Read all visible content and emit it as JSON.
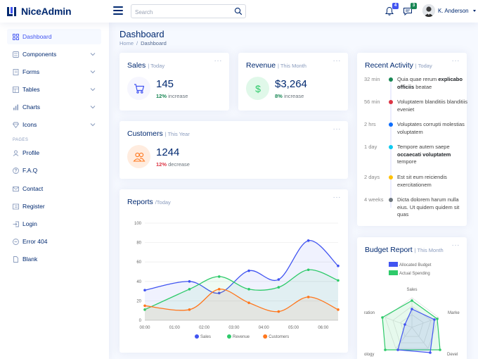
{
  "header": {
    "logo_text": "NiceAdmin",
    "search_placeholder": "Search",
    "notifications_count": "4",
    "messages_count": "3",
    "user_name": "K. Anderson"
  },
  "sidebar": {
    "items": [
      {
        "label": "Dashboard",
        "icon": "grid-icon",
        "active": true
      },
      {
        "label": "Components",
        "icon": "menu-button-icon"
      },
      {
        "label": "Forms",
        "icon": "journal-text-icon"
      },
      {
        "label": "Tables",
        "icon": "layout-text-icon"
      },
      {
        "label": "Charts",
        "icon": "bar-chart-icon"
      },
      {
        "label": "Icons",
        "icon": "gem-icon"
      }
    ],
    "heading": "PAGES",
    "pages": [
      {
        "label": "Profile",
        "icon": "person-icon"
      },
      {
        "label": "F.A.Q",
        "icon": "question-circle-icon"
      },
      {
        "label": "Contact",
        "icon": "envelope-icon"
      },
      {
        "label": "Register",
        "icon": "card-list-icon"
      },
      {
        "label": "Login",
        "icon": "box-arrow-in-right-icon"
      },
      {
        "label": "Error 404",
        "icon": "dash-circle-icon"
      },
      {
        "label": "Blank",
        "icon": "file-icon"
      }
    ]
  },
  "page": {
    "title": "Dashboard",
    "breadcrumb": [
      "Home",
      "/",
      "Dashboard"
    ]
  },
  "cards": {
    "sales": {
      "title": "Sales",
      "filter": "| Today",
      "value": "145",
      "change": "12%",
      "change_label": "increase",
      "icon": "cart-icon",
      "dots": "···"
    },
    "revenue": {
      "title": "Revenue",
      "filter": "| This Month",
      "value": "$3,264",
      "change": "8%",
      "change_label": "increase",
      "icon": "currency-dollar-icon",
      "dots": "···"
    },
    "customers": {
      "title": "Customers",
      "filter": "| This Year",
      "value": "1244",
      "change": "12%",
      "change_label": "decrease",
      "icon": "people-icon",
      "dots": "···"
    },
    "reports": {
      "title": "Reports",
      "filter": "/Today",
      "dots": "···"
    },
    "activity": {
      "title": "Recent Activity",
      "filter": "| Today",
      "dots": "···"
    },
    "budget": {
      "title": "Budget Report",
      "filter": "| This Month",
      "dots": "···"
    }
  },
  "activity": [
    {
      "time": "32 min",
      "text": "Quia quae rerum ",
      "bold": "explicabo officiis",
      "tail": " beatae",
      "color": "#198754"
    },
    {
      "time": "56 min",
      "text": "Voluptatem blanditiis blanditiis eveniet",
      "bold": "",
      "tail": "",
      "color": "#dc3545"
    },
    {
      "time": "2 hrs",
      "text": "Voluptates corrupti molestias voluptatem",
      "bold": "",
      "tail": "",
      "color": "#0d6efd"
    },
    {
      "time": "1 day",
      "text": "Tempore autem saepe ",
      "bold": "occaecati voluptatem",
      "tail": " tempore",
      "color": "#0dcaf0"
    },
    {
      "time": "2 days",
      "text": "Est sit eum reiciendis exercitationem",
      "bold": "",
      "tail": "",
      "color": "#ffc107"
    },
    {
      "time": "4 weeks",
      "text": "Dicta dolorem harum nulla eius. Ut quidem quidem sit quas",
      "bold": "",
      "tail": "",
      "color": "#6c757d"
    }
  ],
  "colors": {
    "sales": "#4154f1",
    "revenue": "#2eca6a",
    "customers": "#ff771d",
    "allocated": "#4154f1",
    "actual": "#2eca6a"
  },
  "chart_data": [
    {
      "type": "area",
      "categories": [
        "00:00",
        "01:00",
        "02:00",
        "03:00",
        "04:00",
        "05:00",
        "06:00"
      ],
      "ylim": [
        0,
        100
      ],
      "yticks": [
        0,
        20,
        40,
        60,
        80,
        100
      ],
      "series": [
        {
          "name": "Sales",
          "x": [
            0,
            1.5,
            2.5,
            3.5,
            4.5,
            5.5,
            6.5
          ],
          "values": [
            31,
            40,
            28,
            51,
            42,
            82,
            56
          ]
        },
        {
          "name": "Revenue",
          "x": [
            0,
            1.5,
            2.5,
            3.5,
            4.5,
            5.5,
            6.5
          ],
          "values": [
            11,
            32,
            45,
            32,
            34,
            52,
            41
          ]
        },
        {
          "name": "Customers",
          "x": [
            0,
            1.5,
            2.5,
            3.5,
            4.5,
            5.5,
            6.5
          ],
          "values": [
            15,
            11,
            32,
            18,
            9,
            24,
            11
          ]
        }
      ],
      "legend": "bottom"
    },
    {
      "type": "radar",
      "axes": [
        "Sales",
        "Marke",
        "Devel",
        "ology",
        "ration"
      ],
      "series": [
        {
          "name": "Allocated Budget",
          "values": []
        },
        {
          "name": "Actual Spending",
          "values": []
        }
      ],
      "legend": "top"
    }
  ]
}
